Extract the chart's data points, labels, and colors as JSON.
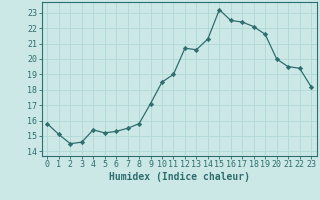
{
  "x": [
    0,
    1,
    2,
    3,
    4,
    5,
    6,
    7,
    8,
    9,
    10,
    11,
    12,
    13,
    14,
    15,
    16,
    17,
    18,
    19,
    20,
    21,
    22,
    23
  ],
  "y": [
    15.8,
    15.1,
    14.5,
    14.6,
    15.4,
    15.2,
    15.3,
    15.5,
    15.8,
    17.1,
    18.5,
    19.0,
    20.7,
    20.6,
    21.3,
    23.2,
    22.5,
    22.4,
    22.1,
    21.6,
    20.0,
    19.5,
    19.4,
    18.2
  ],
  "xlim": [
    -0.5,
    23.5
  ],
  "ylim": [
    13.7,
    23.7
  ],
  "yticks": [
    14,
    15,
    16,
    17,
    18,
    19,
    20,
    21,
    22,
    23
  ],
  "xticks": [
    0,
    1,
    2,
    3,
    4,
    5,
    6,
    7,
    8,
    9,
    10,
    11,
    12,
    13,
    14,
    15,
    16,
    17,
    18,
    19,
    20,
    21,
    22,
    23
  ],
  "xlabel": "Humidex (Indice chaleur)",
  "line_color": "#2e6e6e",
  "marker": "D",
  "marker_size": 2.2,
  "bg_color": "#cce8e6",
  "grid_color": "#b0d8d5",
  "tick_color": "#2e6e6e",
  "label_color": "#2e6e6e",
  "xlabel_fontsize": 7,
  "tick_fontsize": 6
}
